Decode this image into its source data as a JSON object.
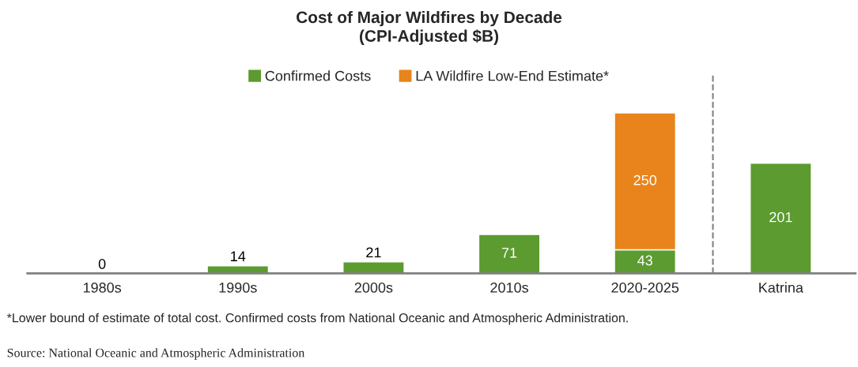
{
  "chart_data": {
    "type": "bar",
    "title": "Cost of Major Wildfires by Decade\n(CPI-Adjusted $B)",
    "categories": [
      "1980s",
      "1990s",
      "2000s",
      "2010s",
      "2020-2025",
      "Katrina"
    ],
    "stacked": true,
    "data_labels": true,
    "legend": "top",
    "grid": false,
    "series": [
      {
        "name": "Confirmed Costs",
        "color": "#5b9b2f",
        "values": [
          0,
          14,
          21,
          71,
          43,
          201
        ]
      },
      {
        "name": "LA Wildfire Low-End Estimate*",
        "color": "#e8841b",
        "values": [
          null,
          null,
          null,
          null,
          250,
          null
        ]
      }
    ],
    "annotations": [
      "*Lower bound of estimate of total cost. Confirmed costs from National Oceanic and Atmospheric Administration.",
      "Source: National Oceanic and Atmospheric Administration"
    ]
  }
}
